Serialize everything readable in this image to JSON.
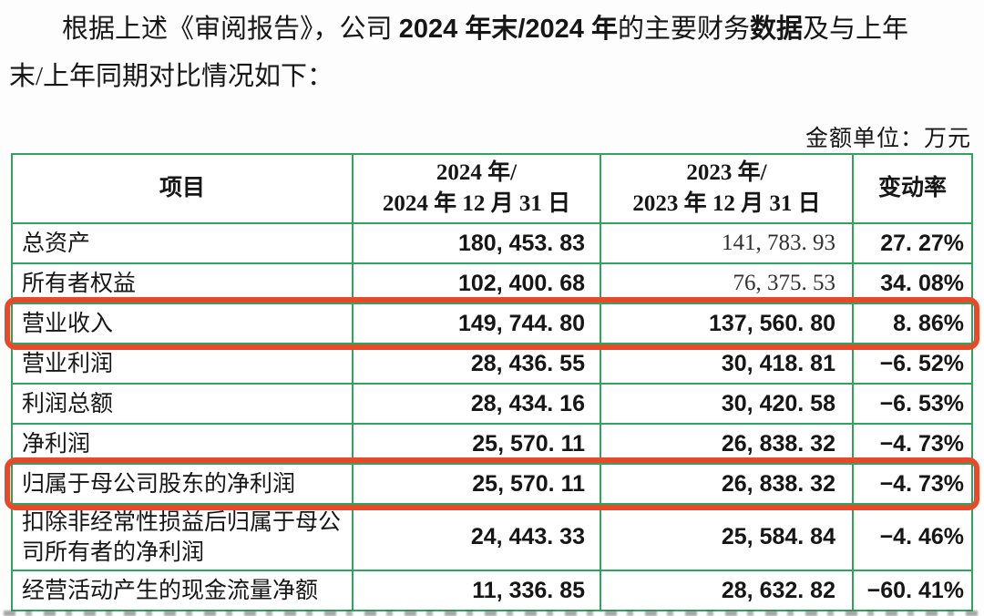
{
  "colors": {
    "table_border_green": "#2fa45c",
    "annotation_red": "#e8492a",
    "text": "#161616"
  },
  "intro": {
    "line1_seg1": "根据上述《审阅报告》，公司 ",
    "line1_seg2": "2024 年末/2024 年",
    "line1_seg3": "的主要财务",
    "line1_seg4": "数据",
    "line1_seg5": "及与上年",
    "line2": "末/上年同期对比情况如下："
  },
  "unit_label": "金额单位：万元",
  "table": {
    "headers": {
      "item": "项目",
      "current_line1": "2024 年/",
      "current_line2": "2024 年 12 月 31 日",
      "previous_line1": "2023 年/",
      "previous_line2": "2023 年 12 月 31 日",
      "change": "变动率"
    },
    "rows": [
      {
        "label": "总资产",
        "current": "180, 453. 83",
        "previous": "141, 783. 93",
        "change": "27. 27%",
        "prev_serif": true
      },
      {
        "label": "所有者权益",
        "current": "102, 400. 68",
        "previous": "76, 375. 53",
        "change": "34. 08%",
        "prev_serif": true
      },
      {
        "label": "营业收入",
        "current": "149, 744. 80",
        "previous": "137, 560. 80",
        "change": "8. 86%",
        "highlighted": true
      },
      {
        "label": "营业利润",
        "current": "28, 436. 55",
        "previous": "30, 418. 81",
        "change": "−6. 52%"
      },
      {
        "label": "利润总额",
        "current": "28, 434. 16",
        "previous": "30, 420. 58",
        "change": "−6. 53%"
      },
      {
        "label": "净利润",
        "current": "25, 570. 11",
        "previous": "26, 838. 32",
        "change": "−4. 73%"
      },
      {
        "label": "归属于母公司股东的净利润",
        "current": "25, 570. 11",
        "previous": "26, 838. 32",
        "change": "−4. 73%",
        "highlighted": true
      },
      {
        "label": "扣除非经常性损益后归属于母公司所有者的净利润",
        "current": "24, 443. 33",
        "previous": "25, 584. 84",
        "change": "−4. 46%",
        "tall": true
      },
      {
        "label": "经营活动产生的现金流量净额",
        "current": "11, 336. 85",
        "previous": "28, 632. 82",
        "change": "−60. 41%"
      }
    ]
  }
}
